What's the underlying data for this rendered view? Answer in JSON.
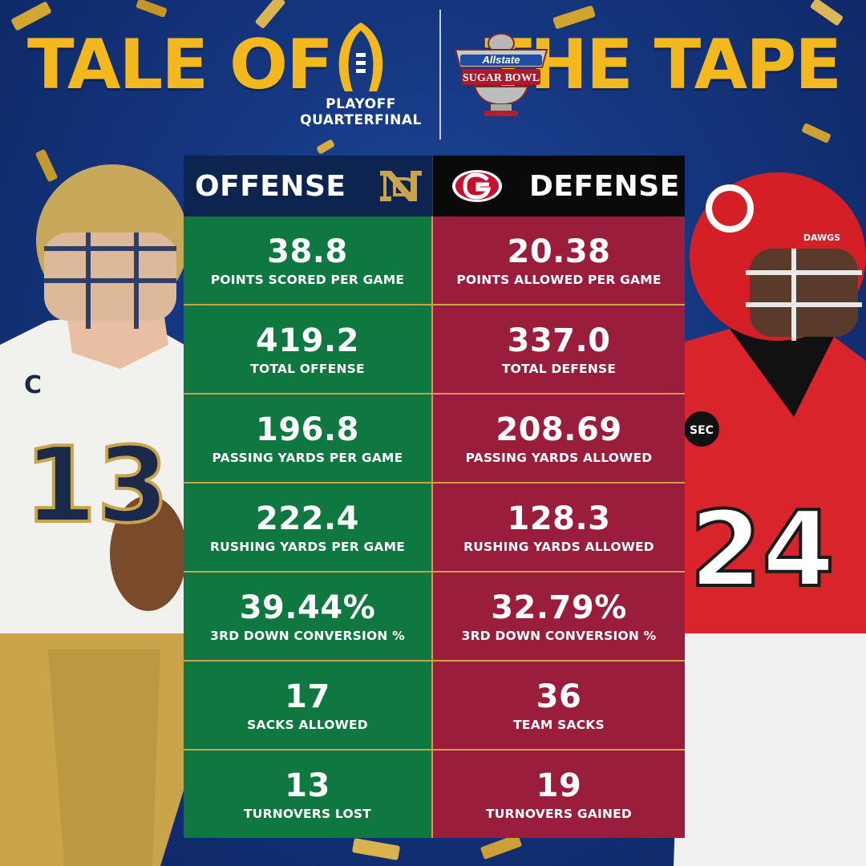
{
  "header": {
    "title_left": "TALE OF",
    "title_right": "THE TAPE",
    "cfp_label_line1": "PLAYOFF",
    "cfp_label_line2": "QUARTERFINAL",
    "sponsor_logo_text": "Allstate",
    "bowl_logo_text": "SUGAR BOWL"
  },
  "table": {
    "left_header": "OFFENSE",
    "right_header": "DEFENSE",
    "left_logo": "notre-dame-nd-logo",
    "right_logo": "georgia-g-logo",
    "rows": [
      {
        "offense_value": "38.8",
        "offense_label": "POINTS SCORED PER GAME",
        "defense_value": "20.38",
        "defense_label": "POINTS ALLOWED PER GAME"
      },
      {
        "offense_value": "419.2",
        "offense_label": "TOTAL OFFENSE",
        "defense_value": "337.0",
        "defense_label": "TOTAL DEFENSE"
      },
      {
        "offense_value": "196.8",
        "offense_label": "PASSING YARDS PER GAME",
        "defense_value": "208.69",
        "defense_label": "PASSING YARDS ALLOWED"
      },
      {
        "offense_value": "222.4",
        "offense_label": "RUSHING YARDS PER GAME",
        "defense_value": "128.3",
        "defense_label": "RUSHING YARDS ALLOWED"
      },
      {
        "offense_value": "39.44%",
        "offense_label": "3RD DOWN CONVERSION %",
        "defense_value": "32.79%",
        "defense_label": "3RD DOWN CONVERSION %"
      },
      {
        "offense_value": "17",
        "offense_label": "SACKS ALLOWED",
        "defense_value": "36",
        "defense_label": "TEAM SACKS"
      },
      {
        "offense_value": "13",
        "offense_label": "TURNOVERS LOST",
        "defense_value": "19",
        "defense_label": "TURNOVERS GAINED"
      }
    ]
  },
  "players": {
    "left_jersey_number": "13",
    "left_captain_patch": "C",
    "right_jersey_number": "24",
    "right_conference_patch": "SEC",
    "right_helmet_text": "DAWGS"
  },
  "colors": {
    "gold": "#f2b81d",
    "offense_green": "#0f7740",
    "defense_red": "#9a1d3b",
    "navy": "#0d2350",
    "background_blue": "#15367f"
  }
}
